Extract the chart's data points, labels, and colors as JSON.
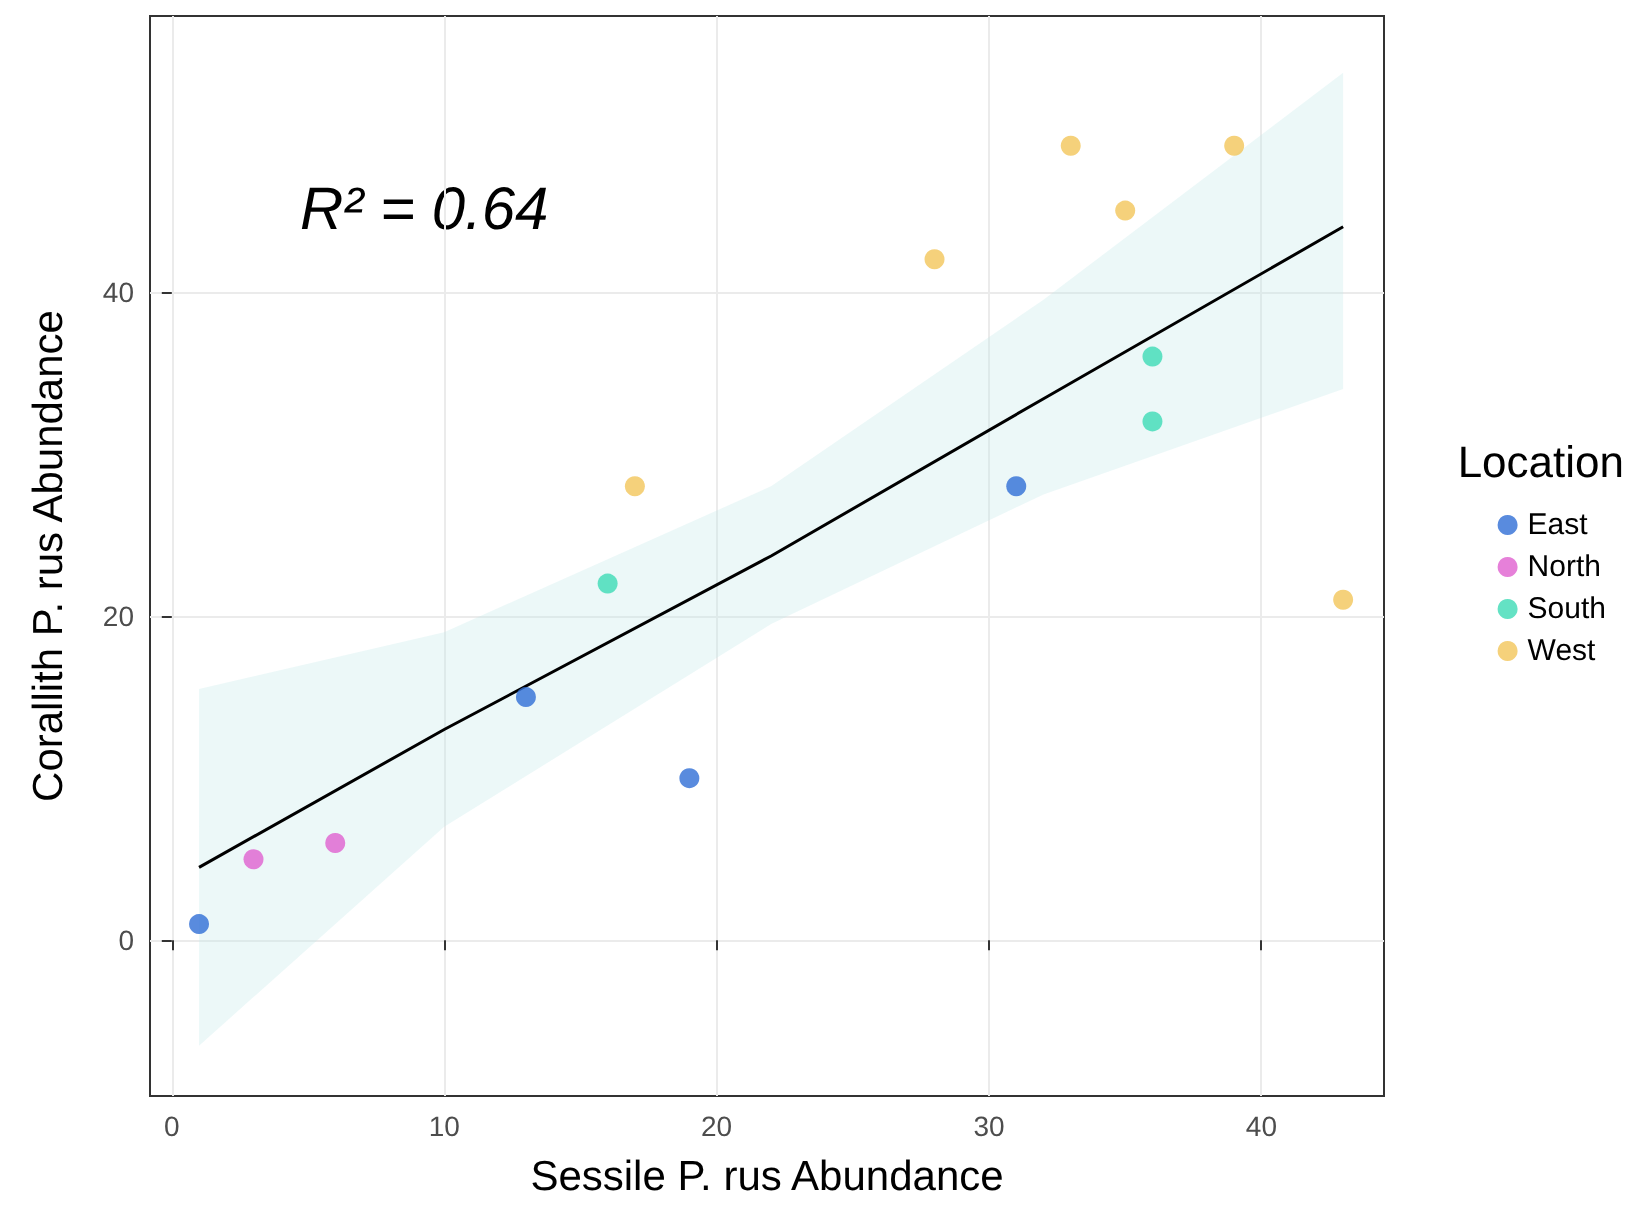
{
  "chart_data": {
    "type": "scatter",
    "xlabel": "Sessile P. rus Abundance",
    "ylabel": "Corallith P. rus Abundance",
    "legend_title": "Location",
    "annotations": [
      "R² = 0.64"
    ],
    "series": [
      {
        "name": "East",
        "color": "#2f6ed6",
        "x": [
          1,
          13,
          19,
          31
        ],
        "values": [
          1,
          15,
          10,
          28
        ]
      },
      {
        "name": "North",
        "color": "#e060d0",
        "x": [
          3,
          6
        ],
        "values": [
          5,
          6
        ]
      },
      {
        "name": "South",
        "color": "#3ddbb5",
        "x": [
          16,
          36,
          36
        ],
        "values": [
          22,
          36,
          32
        ]
      },
      {
        "name": "West",
        "color": "#f2c65a",
        "x": [
          17,
          28,
          33,
          35,
          39,
          43
        ],
        "values": [
          28,
          42,
          49,
          45,
          49,
          21
        ]
      },
      {
        "type": "line",
        "color": "#000000",
        "marker": "none",
        "x": [
          1,
          10,
          22,
          32,
          43
        ],
        "values": [
          4.5,
          13,
          23.7,
          33.4,
          44
        ],
        "lower": [
          -6.5,
          7,
          19.5,
          27.5,
          34
        ],
        "upper": [
          15.5,
          19,
          28,
          39.5,
          53.5
        ]
      }
    ],
    "xlim": [
      -0.8,
      44.5
    ],
    "ylim": [
      -9.6,
      57
    ],
    "xticks": [
      0,
      10,
      20,
      30,
      40
    ],
    "yticks": [
      0,
      20,
      40
    ],
    "grid": true,
    "legend": "right",
    "marker": "circle"
  }
}
